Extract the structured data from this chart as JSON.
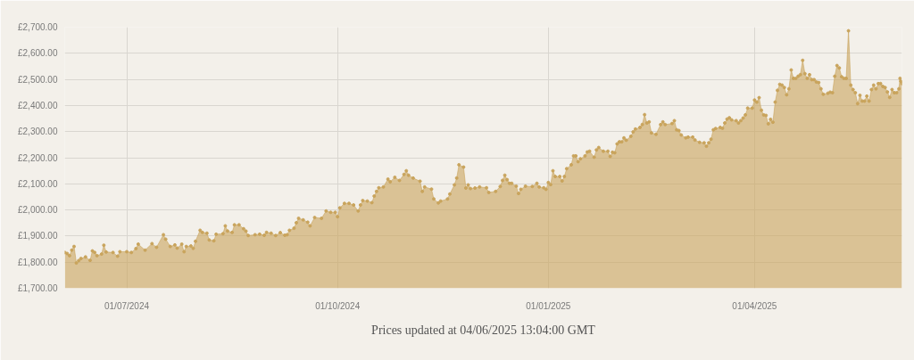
{
  "chart_data": {
    "type": "area",
    "marker": "circle",
    "grid": true,
    "annotations": [
      "Prices updated at 04/06/2025 13:04:00 GMT"
    ],
    "xlim": [
      "2024-06-03T22:00",
      "2025-06-04T08:00"
    ],
    "xticks": [
      {
        "value": "2024-07-01",
        "label": "01/07/2024"
      },
      {
        "value": "2024-10-01",
        "label": "01/10/2024"
      },
      {
        "value": "2025-01-01",
        "label": "01/01/2025"
      },
      {
        "value": "2025-04-01",
        "label": "01/04/2025"
      }
    ],
    "ylim": [
      1700,
      2700
    ],
    "yticks": [
      {
        "value": 1700,
        "label": "£1,700.00"
      },
      {
        "value": 1800,
        "label": "£1,800.00"
      },
      {
        "value": 1900,
        "label": "£1,900.00"
      },
      {
        "value": 2000,
        "label": "£2,000.00"
      },
      {
        "value": 2100,
        "label": "£2,100.00"
      },
      {
        "value": 2200,
        "label": "£2,200.00"
      },
      {
        "value": 2300,
        "label": "£2,300.00"
      },
      {
        "value": 2400,
        "label": "£2,400.00"
      },
      {
        "value": 2500,
        "label": "£2,500.00"
      },
      {
        "value": 2600,
        "label": "£2,600.00"
      },
      {
        "value": 2700,
        "label": "£2,700.00"
      }
    ],
    "x": [
      "2024-06-04",
      "2024-06-05",
      "2024-06-06",
      "2024-06-07",
      "2024-06-08",
      "2024-06-09",
      "2024-06-10",
      "2024-06-11",
      "2024-06-13",
      "2024-06-15",
      "2024-06-16",
      "2024-06-17",
      "2024-06-18",
      "2024-06-20",
      "2024-06-21",
      "2024-06-22",
      "2024-06-25",
      "2024-06-27",
      "2024-06-28",
      "2024-07-01",
      "2024-07-03",
      "2024-07-05",
      "2024-07-06",
      "2024-07-09",
      "2024-07-12",
      "2024-07-14",
      "2024-07-17",
      "2024-07-18",
      "2024-07-20",
      "2024-07-22",
      "2024-07-23",
      "2024-07-25",
      "2024-07-26",
      "2024-07-27",
      "2024-07-29",
      "2024-07-30",
      "2024-07-31",
      "2024-08-02",
      "2024-08-03",
      "2024-08-05",
      "2024-08-06",
      "2024-08-08",
      "2024-08-09",
      "2024-08-12",
      "2024-08-13",
      "2024-08-14",
      "2024-08-16",
      "2024-08-17",
      "2024-08-19",
      "2024-08-21",
      "2024-08-22",
      "2024-08-23",
      "2024-08-26",
      "2024-08-28",
      "2024-08-30",
      "2024-08-31",
      "2024-09-02",
      "2024-09-04",
      "2024-09-06",
      "2024-09-08",
      "2024-09-09",
      "2024-09-10",
      "2024-09-12",
      "2024-09-13",
      "2024-09-14",
      "2024-09-16",
      "2024-09-18",
      "2024-09-19",
      "2024-09-21",
      "2024-09-24",
      "2024-09-26",
      "2024-09-28",
      "2024-09-30",
      "2024-10-01",
      "2024-10-02",
      "2024-10-04",
      "2024-10-06",
      "2024-10-08",
      "2024-10-10",
      "2024-10-11",
      "2024-10-12",
      "2024-10-14",
      "2024-10-16",
      "2024-10-17",
      "2024-10-18",
      "2024-10-19",
      "2024-10-21",
      "2024-10-23",
      "2024-10-24",
      "2024-10-26",
      "2024-10-28",
      "2024-10-30",
      "2024-10-31",
      "2024-11-01",
      "2024-11-03",
      "2024-11-06",
      "2024-11-07",
      "2024-11-08",
      "2024-11-11",
      "2024-11-12",
      "2024-11-14",
      "2024-11-15",
      "2024-11-18",
      "2024-11-19",
      "2024-11-21",
      "2024-11-22",
      "2024-11-23",
      "2024-11-25",
      "2024-11-26",
      "2024-11-27",
      "2024-11-28",
      "2024-11-30",
      "2024-12-02",
      "2024-12-05",
      "2024-12-06",
      "2024-12-09",
      "2024-12-11",
      "2024-12-12",
      "2024-12-13",
      "2024-12-14",
      "2024-12-15",
      "2024-12-16",
      "2024-12-18",
      "2024-12-19",
      "2024-12-20",
      "2024-12-22",
      "2024-12-25",
      "2024-12-27",
      "2024-12-28",
      "2024-12-30",
      "2024-12-31",
      "2025-01-01",
      "2025-01-02",
      "2025-01-03",
      "2025-01-04",
      "2025-01-06",
      "2025-01-07",
      "2025-01-08",
      "2025-01-09",
      "2025-01-11",
      "2025-01-12",
      "2025-01-13",
      "2025-01-14",
      "2025-01-15",
      "2025-01-17",
      "2025-01-18",
      "2025-01-19",
      "2025-01-21",
      "2025-01-22",
      "2025-01-23",
      "2025-01-25",
      "2025-01-27",
      "2025-01-28",
      "2025-01-29",
      "2025-01-30",
      "2025-01-31",
      "2025-02-01",
      "2025-02-02",
      "2025-02-03",
      "2025-02-04",
      "2025-02-06",
      "2025-02-07",
      "2025-02-08",
      "2025-02-10",
      "2025-02-11",
      "2025-02-12",
      "2025-02-13",
      "2025-02-14",
      "2025-02-15",
      "2025-02-17",
      "2025-02-19",
      "2025-02-20",
      "2025-02-21",
      "2025-02-24",
      "2025-02-25",
      "2025-02-26",
      "2025-02-27",
      "2025-02-28",
      "2025-03-02",
      "2025-03-03",
      "2025-03-05",
      "2025-03-06",
      "2025-03-08",
      "2025-03-10",
      "2025-03-11",
      "2025-03-12",
      "2025-03-13",
      "2025-03-14",
      "2025-03-15",
      "2025-03-17",
      "2025-03-18",
      "2025-03-19",
      "2025-03-20",
      "2025-03-21",
      "2025-03-22",
      "2025-03-24",
      "2025-03-25",
      "2025-03-26",
      "2025-03-27",
      "2025-03-28",
      "2025-03-29",
      "2025-03-31",
      "2025-04-01",
      "2025-04-02",
      "2025-04-03",
      "2025-04-04",
      "2025-04-05",
      "2025-04-06",
      "2025-04-07",
      "2025-04-08",
      "2025-04-09",
      "2025-04-10",
      "2025-04-11",
      "2025-04-12",
      "2025-04-13",
      "2025-04-14",
      "2025-04-15",
      "2025-04-16",
      "2025-04-17",
      "2025-04-18",
      "2025-04-19",
      "2025-04-20",
      "2025-04-21",
      "2025-04-22",
      "2025-04-23",
      "2025-04-24",
      "2025-04-25",
      "2025-04-26",
      "2025-04-27",
      "2025-04-28",
      "2025-04-29",
      "2025-04-30",
      "2025-05-01",
      "2025-05-03",
      "2025-05-04",
      "2025-05-05",
      "2025-05-06",
      "2025-05-07",
      "2025-05-08",
      "2025-05-09",
      "2025-05-10",
      "2025-05-11",
      "2025-05-12",
      "2025-05-13",
      "2025-05-14",
      "2025-05-15",
      "2025-05-16",
      "2025-05-17",
      "2025-05-18",
      "2025-05-19",
      "2025-05-20",
      "2025-05-21",
      "2025-05-22",
      "2025-05-23",
      "2025-05-24",
      "2025-05-25",
      "2025-05-26",
      "2025-05-27",
      "2025-05-28",
      "2025-05-29",
      "2025-05-30",
      "2025-05-31",
      "2025-06-01",
      "2025-06-02",
      "2025-06-03",
      "2025-06-03T12:00",
      "2025-06-03T20:00",
      "2025-06-04T08:00"
    ],
    "series": [
      {
        "color": "#c9a45c",
        "values": [
          1837,
          1833,
          1825,
          1846,
          1860,
          1797,
          1806,
          1814,
          1820,
          1807,
          1843,
          1837,
          1825,
          1831,
          1865,
          1839,
          1837,
          1823,
          1840,
          1840,
          1837,
          1852,
          1869,
          1846,
          1871,
          1857,
          1905,
          1888,
          1860,
          1866,
          1854,
          1869,
          1840,
          1860,
          1862,
          1853,
          1880,
          1922,
          1914,
          1911,
          1885,
          1882,
          1907,
          1909,
          1939,
          1919,
          1914,
          1943,
          1943,
          1928,
          1919,
          1902,
          1905,
          1907,
          1903,
          1914,
          1911,
          1902,
          1913,
          1903,
          1905,
          1922,
          1930,
          1951,
          1968,
          1962,
          1953,
          1939,
          1971,
          1968,
          1996,
          1991,
          1991,
          1974,
          2008,
          2025,
          2025,
          2019,
          1996,
          2019,
          2036,
          2034,
          2028,
          2053,
          2071,
          2085,
          2088,
          2118,
          2108,
          2125,
          2113,
          2136,
          2150,
          2133,
          2122,
          2110,
          2071,
          2088,
          2080,
          2042,
          2027,
          2034,
          2042,
          2061,
          2096,
          2122,
          2173,
          2164,
          2084,
          2096,
          2082,
          2084,
          2088,
          2085,
          2067,
          2071,
          2090,
          2113,
          2133,
          2116,
          2102,
          2102,
          2091,
          2063,
          2079,
          2091,
          2090,
          2102,
          2088,
          2085,
          2079,
          2105,
          2097,
          2150,
          2128,
          2128,
          2111,
          2128,
          2158,
          2173,
          2207,
          2207,
          2185,
          2196,
          2207,
          2222,
          2225,
          2202,
          2230,
          2239,
          2225,
          2225,
          2205,
          2221,
          2219,
          2253,
          2261,
          2261,
          2276,
          2267,
          2282,
          2299,
          2310,
          2316,
          2327,
          2365,
          2333,
          2337,
          2295,
          2290,
          2327,
          2337,
          2327,
          2331,
          2342,
          2307,
          2304,
          2287,
          2276,
          2279,
          2279,
          2268,
          2259,
          2257,
          2244,
          2257,
          2271,
          2307,
          2312,
          2316,
          2313,
          2333,
          2348,
          2353,
          2345,
          2342,
          2333,
          2342,
          2352,
          2364,
          2390,
          2390,
          2421,
          2413,
          2430,
          2382,
          2364,
          2362,
          2330,
          2347,
          2336,
          2413,
          2458,
          2481,
          2478,
          2469,
          2441,
          2464,
          2536,
          2504,
          2504,
          2512,
          2518,
          2573,
          2522,
          2504,
          2518,
          2499,
          2499,
          2490,
          2488,
          2464,
          2443,
          2447,
          2451,
          2449,
          2512,
          2553,
          2544,
          2510,
          2504,
          2504,
          2686,
          2478,
          2461,
          2449,
          2407,
          2439,
          2417,
          2417,
          2436,
          2417,
          2461,
          2478,
          2464,
          2484,
          2484,
          2473,
          2469,
          2452,
          2431,
          2461,
          2449,
          2449,
          2464,
          2504,
          2493,
          2484
        ]
      }
    ]
  }
}
